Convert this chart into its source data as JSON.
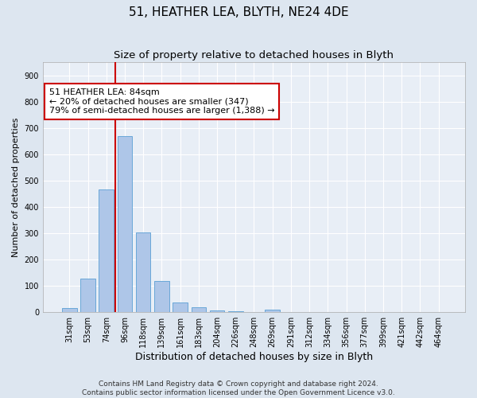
{
  "title": "51, HEATHER LEA, BLYTH, NE24 4DE",
  "subtitle": "Size of property relative to detached houses in Blyth",
  "xlabel": "Distribution of detached houses by size in Blyth",
  "ylabel": "Number of detached properties",
  "footer_line1": "Contains HM Land Registry data © Crown copyright and database right 2024.",
  "footer_line2": "Contains public sector information licensed under the Open Government Licence v3.0.",
  "categories": [
    "31sqm",
    "53sqm",
    "74sqm",
    "96sqm",
    "118sqm",
    "139sqm",
    "161sqm",
    "183sqm",
    "204sqm",
    "226sqm",
    "248sqm",
    "269sqm",
    "291sqm",
    "312sqm",
    "334sqm",
    "356sqm",
    "377sqm",
    "399sqm",
    "421sqm",
    "442sqm",
    "464sqm"
  ],
  "values": [
    17,
    127,
    467,
    670,
    303,
    119,
    37,
    18,
    7,
    5,
    0,
    10,
    0,
    0,
    0,
    0,
    0,
    0,
    0,
    0,
    0
  ],
  "bar_color": "#aec6e8",
  "bar_edge_color": "#5a9fd4",
  "property_line_label": "51 HEATHER LEA: 84sqm",
  "annotation_line1": "← 20% of detached houses are smaller (347)",
  "annotation_line2": "79% of semi-detached houses are larger (1,388) →",
  "annotation_box_color": "#ffffff",
  "annotation_box_edge_color": "#cc0000",
  "vline_color": "#cc0000",
  "vline_x": 2.5,
  "ylim": [
    0,
    950
  ],
  "yticks": [
    0,
    100,
    200,
    300,
    400,
    500,
    600,
    700,
    800,
    900
  ],
  "background_color": "#dde6f0",
  "plot_background_color": "#e8eef6",
  "grid_color": "#ffffff",
  "title_fontsize": 11,
  "subtitle_fontsize": 9.5,
  "xlabel_fontsize": 9,
  "ylabel_fontsize": 8,
  "tick_fontsize": 7,
  "annotation_fontsize": 8,
  "footer_fontsize": 6.5
}
